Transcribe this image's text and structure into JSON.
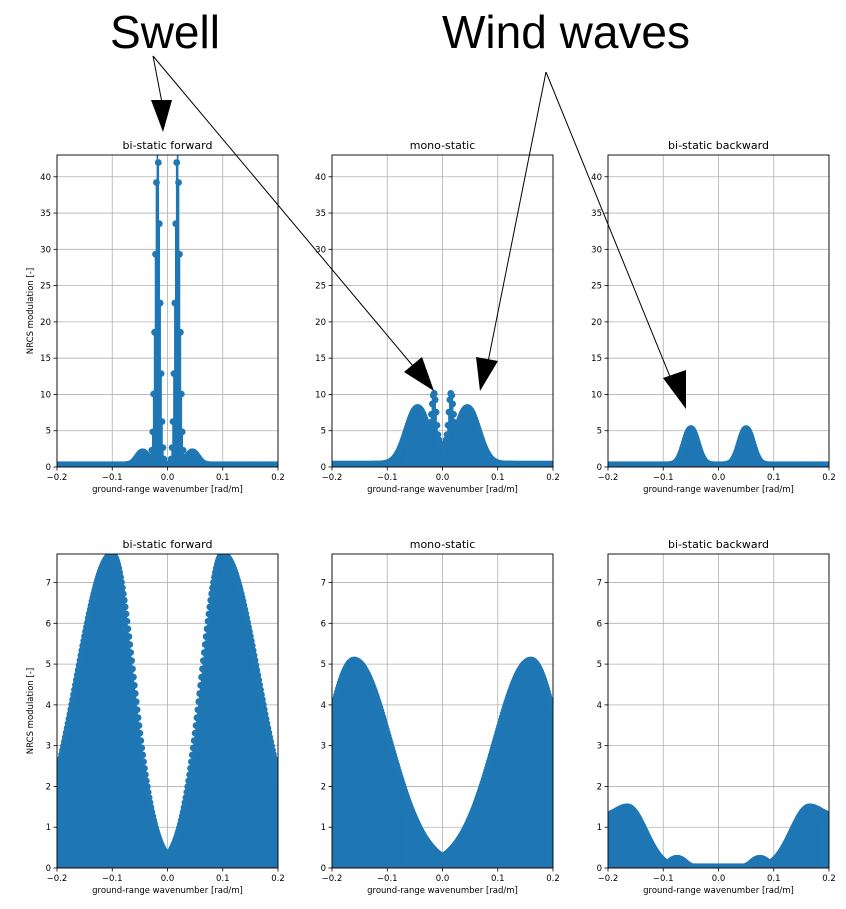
{
  "annotations": {
    "swell_label": "Swell",
    "wind_label": "Wind waves"
  },
  "colors": {
    "series": "#1f77b4",
    "baseline": "#d62728",
    "grid": "#b0b0b0"
  },
  "chart_data": [
    {
      "type": "stem",
      "title": "bi-static forward",
      "xlabel": "ground-range wavenumber [rad/m]",
      "ylabel": "NRCS modulation [-]",
      "xlim": [
        -0.2,
        0.2
      ],
      "ylim": [
        0,
        43
      ],
      "xticks": [
        -0.2,
        -0.1,
        0.0,
        0.1,
        0.2
      ],
      "xtick_labels": [
        "−0.2",
        "−0.1",
        "0.0",
        "0.1",
        "0.2"
      ],
      "yticks": [
        0,
        5,
        10,
        15,
        20,
        25,
        30,
        35,
        40
      ],
      "ytick_labels": [
        "0",
        "5",
        "10",
        "15",
        "20",
        "25",
        "30",
        "35",
        "40"
      ],
      "grid": true,
      "profile": {
        "kind": "swell",
        "base": 0.3,
        "peaks": [
          [
            0.018,
            0.004,
            44
          ],
          [
            0.045,
            0.01,
            1.8
          ]
        ]
      }
    },
    {
      "type": "stem",
      "title": "mono-static",
      "xlabel": "ground-range wavenumber [rad/m]",
      "ylabel": "",
      "xlim": [
        -0.2,
        0.2
      ],
      "ylim": [
        0,
        43
      ],
      "xticks": [
        -0.2,
        -0.1,
        0.0,
        0.1,
        0.2
      ],
      "xtick_labels": [
        "−0.2",
        "−0.1",
        "0.0",
        "0.1",
        "0.2"
      ],
      "yticks": [
        0,
        5,
        10,
        15,
        20,
        25,
        30,
        35,
        40
      ],
      "ytick_labels": [
        "0",
        "5",
        "10",
        "15",
        "20",
        "25",
        "30",
        "35",
        "40"
      ],
      "grid": true,
      "profile": {
        "kind": "wind",
        "base": 0.4,
        "peaks": [
          [
            0.045,
            0.02,
            7.8
          ],
          [
            0.015,
            0.004,
            7.2
          ],
          [
            0.005,
            0.003,
            1.5
          ]
        ]
      }
    },
    {
      "type": "stem",
      "title": "bi-static backward",
      "xlabel": "ground-range wavenumber [rad/m]",
      "ylabel": "",
      "xlim": [
        -0.2,
        0.2
      ],
      "ylim": [
        0,
        43
      ],
      "xticks": [
        -0.2,
        -0.1,
        0.0,
        0.1,
        0.2
      ],
      "xtick_labels": [
        "−0.2",
        "−0.1",
        "0.0",
        "0.1",
        "0.2"
      ],
      "yticks": [
        0,
        5,
        10,
        15,
        20,
        25,
        30,
        35,
        40
      ],
      "ytick_labels": [
        "0",
        "5",
        "10",
        "15",
        "20",
        "25",
        "30",
        "35",
        "40"
      ],
      "grid": true,
      "profile": {
        "kind": "wind",
        "base": 0.3,
        "peaks": [
          [
            0.05,
            0.012,
            5.0
          ]
        ]
      }
    },
    {
      "type": "stem",
      "title": "bi-static forward",
      "xlabel": "ground-range wavenumber [rad/m]",
      "ylabel": "NRCS modulation [-]",
      "xlim": [
        -0.2,
        0.2
      ],
      "ylim": [
        0,
        7.7
      ],
      "xticks": [
        -0.2,
        -0.1,
        0.0,
        0.1,
        0.2
      ],
      "xtick_labels": [
        "−0.2",
        "−0.1",
        "0.0",
        "0.1",
        "0.2"
      ],
      "yticks": [
        0,
        1,
        2,
        3,
        4,
        5,
        6,
        7
      ],
      "ytick_labels": [
        "0",
        "1",
        "2",
        "3",
        "4",
        "5",
        "6",
        "7"
      ],
      "grid": true,
      "profile": {
        "kind": "broad",
        "peak_x": 0.1,
        "peak_y": 7.7,
        "edge_y": 2.3,
        "valley_y": 0.05
      }
    },
    {
      "type": "stem",
      "title": "mono-static",
      "xlabel": "ground-range wavenumber [rad/m]",
      "ylabel": "",
      "xlim": [
        -0.2,
        0.2
      ],
      "ylim": [
        0,
        7.7
      ],
      "xticks": [
        -0.2,
        -0.1,
        0.0,
        0.1,
        0.2
      ],
      "xtick_labels": [
        "−0.2",
        "−0.1",
        "0.0",
        "0.1",
        "0.2"
      ],
      "yticks": [
        0,
        1,
        2,
        3,
        4,
        5,
        6,
        7
      ],
      "ytick_labels": [
        "0",
        "1",
        "2",
        "3",
        "4",
        "5",
        "6",
        "7"
      ],
      "grid": true,
      "profile": {
        "kind": "broad",
        "peak_x": 0.16,
        "peak_y": 5.1,
        "edge_y": 3.8,
        "valley_y": 0.05
      }
    },
    {
      "type": "stem",
      "title": "bi-static backward",
      "xlabel": "ground-range wavenumber [rad/m]",
      "ylabel": "",
      "xlim": [
        -0.2,
        0.2
      ],
      "ylim": [
        0,
        7.7
      ],
      "xticks": [
        -0.2,
        -0.1,
        0.0,
        0.1,
        0.2
      ],
      "xtick_labels": [
        "−0.2",
        "−0.1",
        "0.0",
        "0.1",
        "0.2"
      ],
      "yticks": [
        0,
        1,
        2,
        3,
        4,
        5,
        6,
        7
      ],
      "ytick_labels": [
        "0",
        "1",
        "2",
        "3",
        "4",
        "5",
        "6",
        "7"
      ],
      "grid": true,
      "profile": {
        "kind": "back",
        "peak_x": 0.165,
        "peak_y": 1.5,
        "edge_y": 1.25,
        "shoulder_x": 0.075,
        "shoulder_y": 0.28,
        "valley_y": 0.03
      }
    }
  ]
}
